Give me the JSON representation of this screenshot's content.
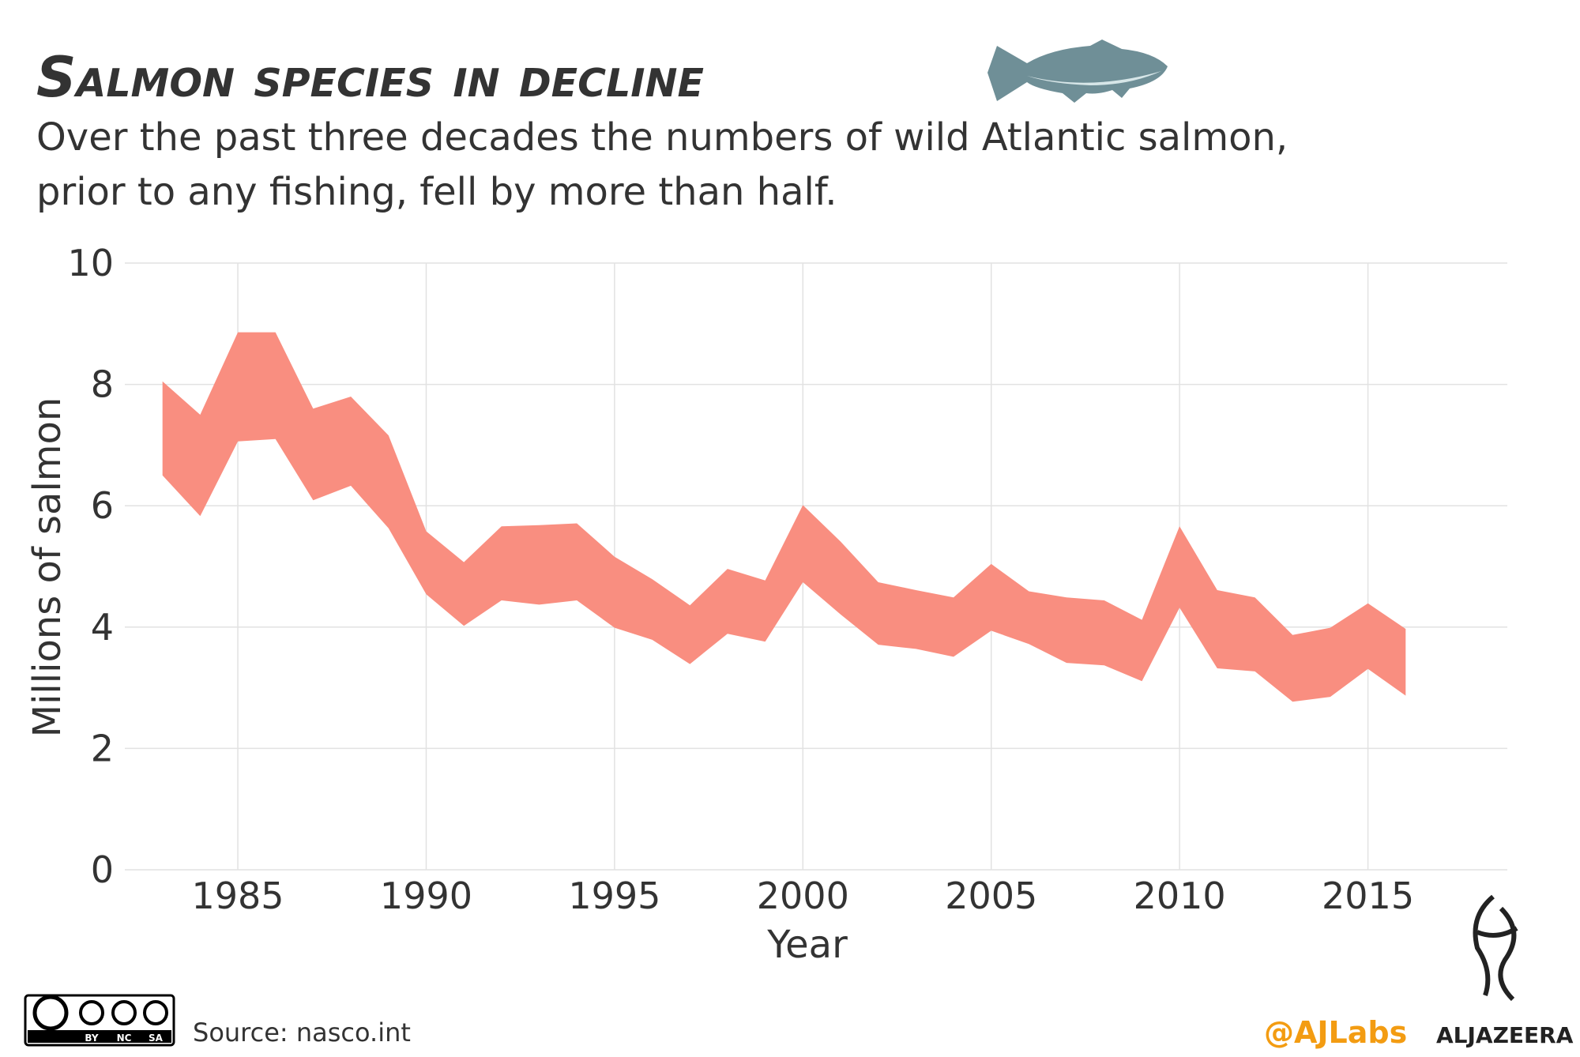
{
  "chart_data": {
    "type": "area",
    "title": "Salmon species in decline",
    "subtitle": [
      "Over the past three decades the numbers of wild Atlantic salmon,",
      "prior to any fishing, fell by more than half."
    ],
    "x_label": "Year",
    "y_label": "Millions of salmon",
    "x": [
      1983,
      1984,
      1985,
      1986,
      1987,
      1988,
      1989,
      1990,
      1991,
      1992,
      1993,
      1994,
      1995,
      1996,
      1997,
      1998,
      1999,
      2000,
      2001,
      2002,
      2003,
      2004,
      2005,
      2006,
      2007,
      2008,
      2009,
      2010,
      2011,
      2012,
      2013,
      2014,
      2015,
      2016
    ],
    "upper": [
      8.05,
      7.5,
      8.86,
      8.86,
      7.6,
      7.8,
      7.16,
      5.58,
      5.07,
      5.66,
      5.68,
      5.71,
      5.16,
      4.79,
      4.36,
      4.96,
      4.77,
      6.01,
      5.41,
      4.74,
      4.61,
      4.49,
      5.04,
      4.59,
      4.49,
      4.44,
      4.12,
      5.66,
      4.61,
      4.49,
      3.87,
      3.99,
      4.39,
      3.97
    ],
    "lower": [
      6.5,
      5.83,
      7.06,
      7.1,
      6.09,
      6.33,
      5.63,
      4.54,
      4.02,
      4.44,
      4.37,
      4.44,
      3.99,
      3.79,
      3.39,
      3.89,
      3.76,
      4.74,
      4.21,
      3.71,
      3.64,
      3.51,
      3.94,
      3.72,
      3.41,
      3.37,
      3.11,
      4.32,
      3.32,
      3.27,
      2.77,
      2.85,
      3.31,
      2.87
    ],
    "color": "#f98e80",
    "xlim": [
      1982,
      2018.7
    ],
    "xticks": [
      1985,
      1990,
      1995,
      2000,
      2005,
      2010,
      2015
    ],
    "ylim": [
      0,
      10
    ],
    "yticks": [
      0,
      2,
      4,
      6,
      8,
      10
    ],
    "grid": true
  },
  "footer": {
    "license": [
      "BY",
      "NC",
      "SA"
    ],
    "source": "Source: nasco.int",
    "handle": "@AJLabs",
    "brand": "ALJAZEERA"
  }
}
